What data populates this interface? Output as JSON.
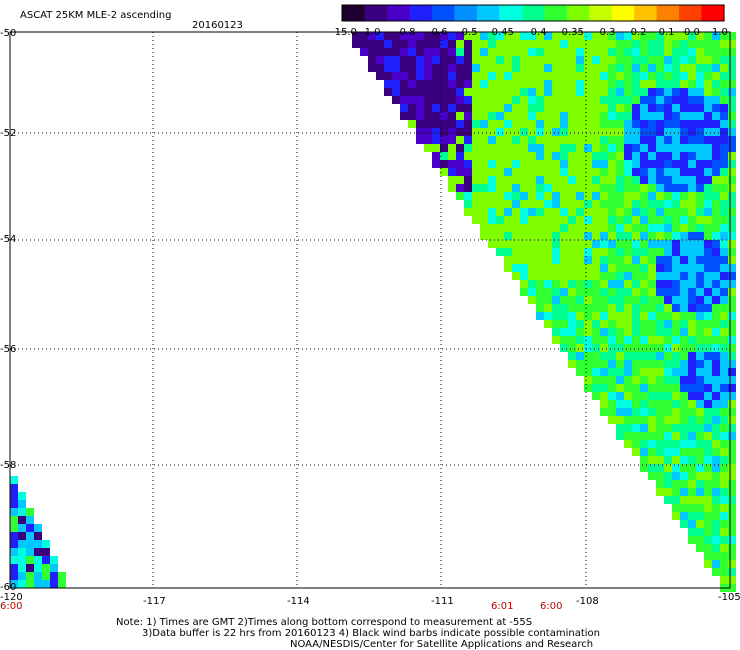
{
  "header": {
    "title": "ASCAT 25KM MLE-2 ascending",
    "date": "20160123"
  },
  "colorbar": {
    "labels": [
      "-15.0",
      "-1.0",
      "-0.8",
      "-0.6",
      "-0.5",
      "-0.45",
      "-0.4",
      "-0.35",
      "-0.3",
      "-0.2",
      "-0.1",
      "0.0",
      "1.0"
    ],
    "colors": [
      "#1e0030",
      "#3a0080",
      "#4a00c8",
      "#2020ff",
      "#0050ff",
      "#0090ff",
      "#00c8ff",
      "#00ffe0",
      "#00ff90",
      "#30ff30",
      "#80ff00",
      "#c8ff00",
      "#ffff00",
      "#ffc000",
      "#ff8000",
      "#ff4000",
      "#ff0000"
    ]
  },
  "map": {
    "lon_labels": [
      "-120",
      "-117",
      "-114",
      "-111",
      "-108",
      "-105"
    ],
    "lat_labels": [
      "-50",
      "-52",
      "-54",
      "-56",
      "-58",
      "-60"
    ],
    "time_labels": [
      "6:00",
      "6:01",
      "6:00"
    ]
  },
  "footer": {
    "note_line1": "Note: 1) Times are GMT 2)Times along bottom correspond to measurement at -55S",
    "note_line2": "3)Data buffer is 22 hrs from 20160123 4) Black wind barbs indicate possible contamination",
    "credit": "NOAA/NESDIS/Center for Satellite Applications and Research"
  }
}
